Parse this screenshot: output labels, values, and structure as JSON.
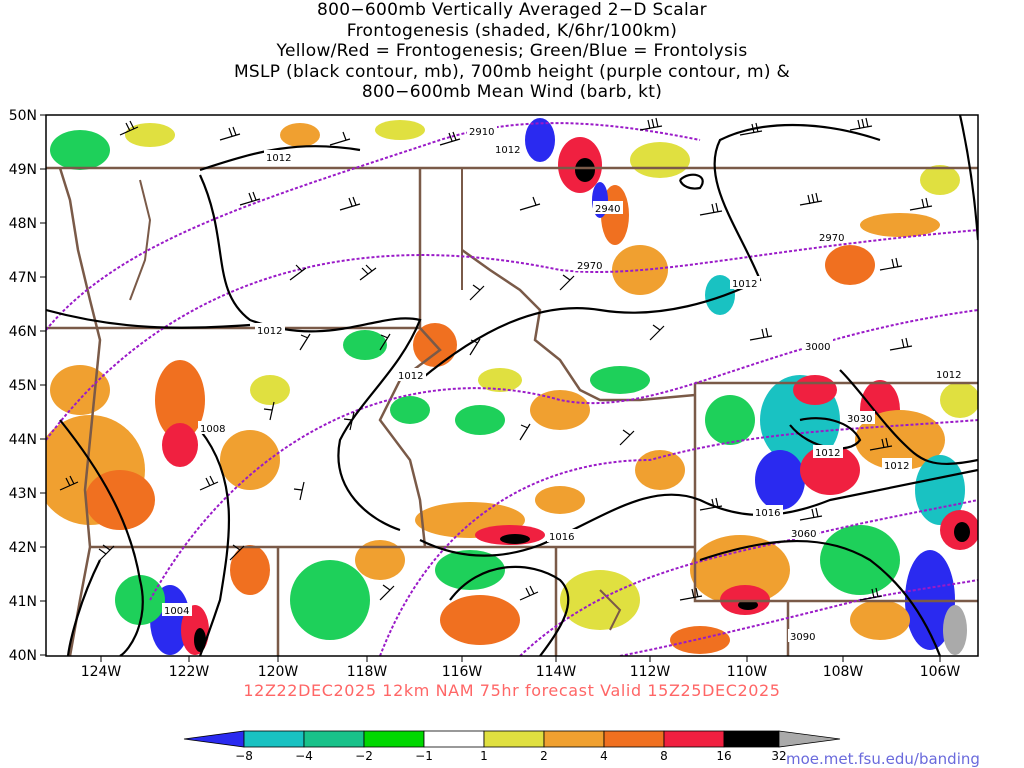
{
  "title_lines": [
    "800−600mb Vertically Averaged 2−D Scalar",
    "Frontogenesis (shaded, K/6hr/100km)",
    "Yellow/Red = Frontogenesis;  Green/Blue = Frontolysis",
    "MSLP (black contour, mb), 700mb height (purple contour, m) &",
    "800−600mb Mean Wind (barb, kt)"
  ],
  "lat_labels": [
    "50N",
    "49N",
    "48N",
    "47N",
    "46N",
    "45N",
    "44N",
    "43N",
    "42N",
    "41N",
    "40N"
  ],
  "lon_labels": [
    "124W",
    "122W",
    "120W",
    "118W",
    "116W",
    "114W",
    "112W",
    "110W",
    "108W",
    "106W"
  ],
  "valid_text": "12Z22DEC2025 12km NAM 75hr forecast Valid 15Z25DEC2025",
  "colorbar": {
    "labels": [
      "−8",
      "−4",
      "−2",
      "−1",
      "1",
      "2",
      "4",
      "8",
      "16",
      "32"
    ],
    "colors": [
      "#2a2af0",
      "#19c2c2",
      "#19c28a",
      "#1ed05a",
      "#00d800",
      "#ffffff",
      "#e0e040",
      "#f0a030",
      "#f07020",
      "#f02040",
      "#e0109a",
      "#000000",
      "#aaaaaa"
    ]
  },
  "pressure_labels": [
    "1012",
    "1012",
    "1012",
    "1012",
    "1012",
    "1012",
    "1012",
    "1016",
    "1016",
    "1008",
    "1004",
    "1012"
  ],
  "height_labels": [
    "2910",
    "2940",
    "2970",
    "2970",
    "3000",
    "3030",
    "3060",
    "3090"
  ],
  "colors": {
    "pressure": "#000000",
    "height": "#9a1ac8",
    "borders": "#7a5a48",
    "valid": "#ff6666",
    "credit": "#6a6adc"
  },
  "credit": "moe.met.fsu.edu/banding"
}
